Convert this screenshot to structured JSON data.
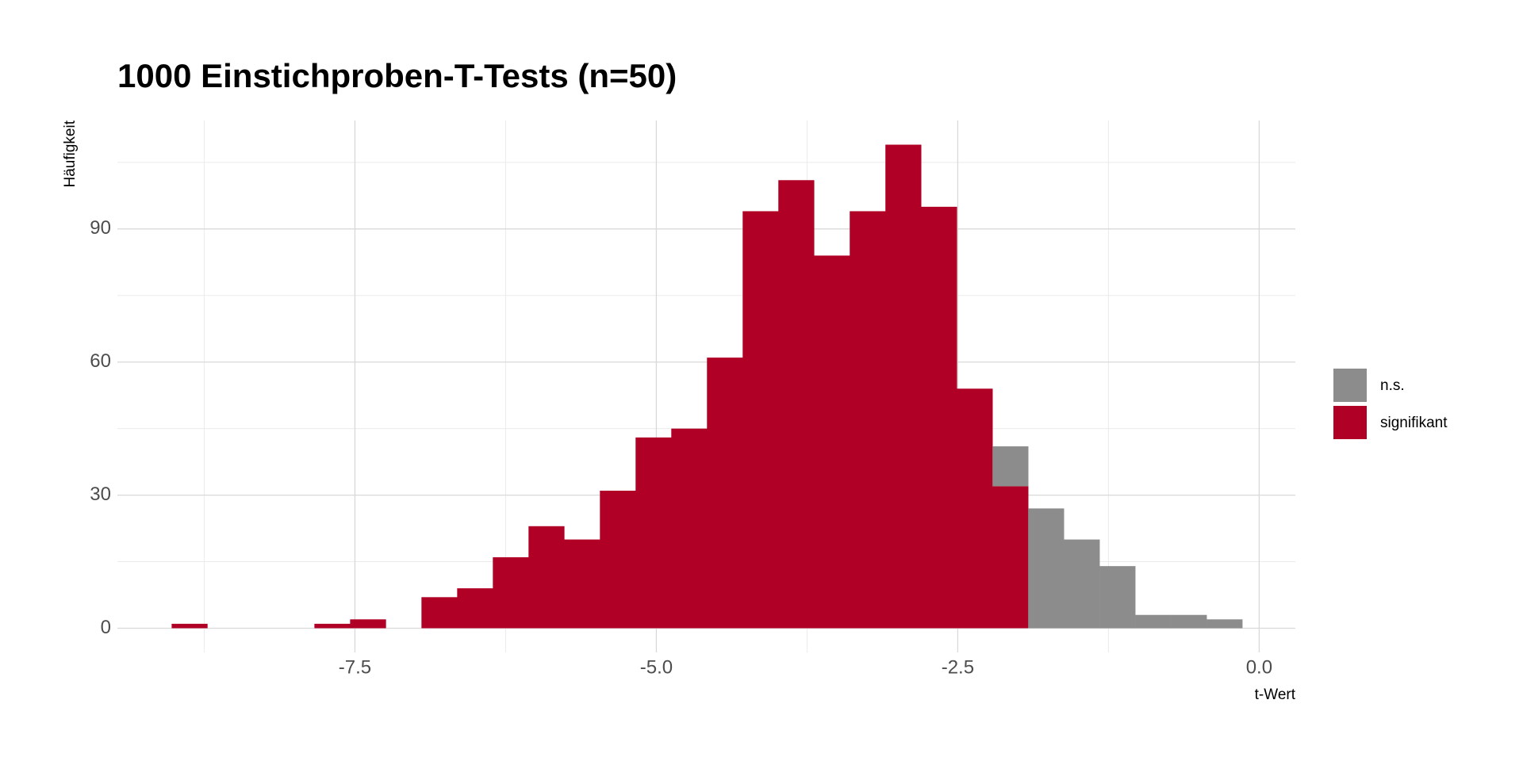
{
  "chart_data": {
    "type": "histogram",
    "title": "1000 Einstichproben-T-Tests (n=50)",
    "x_label": "t-Wert",
    "y_label": "Häufigkeit",
    "bins": [
      -9.02,
      -8.724,
      -8.428,
      -8.132,
      -7.836,
      -7.54,
      -7.244,
      -6.948,
      -6.652,
      -6.356,
      -6.06,
      -5.764,
      -5.468,
      -5.172,
      -4.876,
      -4.58,
      -4.284,
      -3.988,
      -3.692,
      -3.396,
      -3.1,
      -2.804,
      -2.508,
      -2.212,
      -1.916,
      -1.62,
      -1.324,
      -1.028,
      -0.732,
      -0.436,
      -0.14
    ],
    "series": [
      {
        "name": "n.s.",
        "color": "#8c8c8c",
        "values": [
          0,
          0,
          0,
          0,
          0,
          0,
          0,
          0,
          0,
          0,
          0,
          0,
          0,
          0,
          0,
          0,
          0,
          0,
          0,
          0,
          0,
          0,
          0,
          9,
          27,
          20,
          14,
          3,
          3,
          2
        ]
      },
      {
        "name": "signifikant",
        "color": "#b10026",
        "values": [
          1,
          0,
          0,
          0,
          1,
          2,
          0,
          7,
          9,
          16,
          23,
          20,
          31,
          43,
          45,
          61,
          94,
          101,
          84,
          94,
          109,
          95,
          54,
          32,
          0,
          0,
          0,
          0,
          0,
          0
        ]
      }
    ],
    "stacked": true,
    "xlim": [
      -9.47,
      0.3
    ],
    "ylim": [
      -5.45,
      114.45
    ],
    "xticks": [
      -7.5,
      {
        "value": -5,
        "label": "-5.0"
      },
      -2.5,
      {
        "value": 0,
        "label": "0.0"
      }
    ],
    "yticks": [
      0,
      30,
      60,
      90
    ],
    "xminor": [
      -8.75,
      -6.25,
      -3.75,
      -1.25
    ],
    "yminor": [
      15,
      45,
      75,
      105
    ],
    "grid": true,
    "legend_position": "right"
  }
}
